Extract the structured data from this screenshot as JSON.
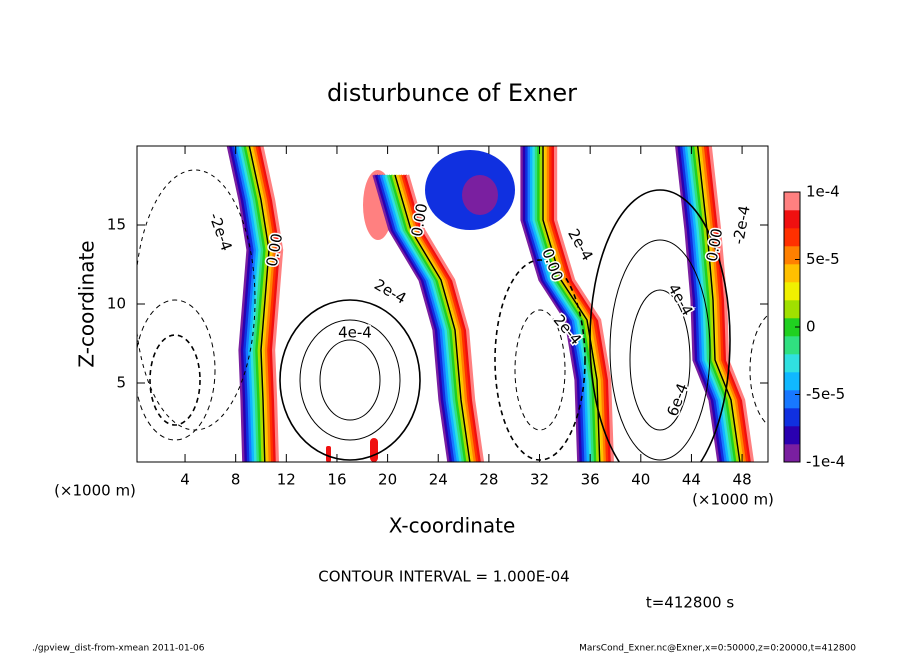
{
  "chart_data": {
    "type": "contour",
    "title": "disturbunce of Exner",
    "x_label": "X-coordinate",
    "y_label": "Z-coordinate",
    "x_unit": "(×1000 m)",
    "x_unit_right": "(×1000 m)",
    "xlim": [
      0,
      50
    ],
    "xticks": [
      4,
      8,
      12,
      16,
      20,
      24,
      28,
      32,
      36,
      40,
      44,
      48
    ],
    "ylim": [
      0,
      20
    ],
    "yticks": [
      5,
      10,
      15
    ],
    "clim": [
      -0.0001,
      0.0001
    ],
    "colorbar_ticks": [
      {
        "value": 0.0001,
        "label": "1e-4"
      },
      {
        "value": 5e-05,
        "label": "5e-5"
      },
      0,
      {
        "value": -5e-05,
        "label": "-5e-5"
      },
      {
        "value": -0.0001,
        "label": "-1e-4"
      }
    ],
    "colors": [
      "#7a1fa0",
      "#2a00b0",
      "#1030e0",
      "#1878ff",
      "#10b8ff",
      "#30e0e0",
      "#30e080",
      "#20d020",
      "#a0e000",
      "#f0f000",
      "#ffc000",
      "#ff8000",
      "#ff3000",
      "#f01010",
      "#ff8080"
    ],
    "contour_labels": [
      "-2e-4",
      "0.00",
      "2e-4",
      "4e-4",
      "0.00",
      "0.00",
      "2e-4",
      "2e-4",
      "4e-4",
      "6e-4",
      "0.00",
      "-2e-4"
    ],
    "contour_interval": "CONTOUR INTERVAL = 1.000E-04",
    "time": "t=412800 s",
    "footer_left": "./gpview_dist-from-xmean  2011-01-06",
    "footer_right": "MarsCond_Exner.nc@Exner,x=0:50000,z=0:20000,t=412800"
  }
}
